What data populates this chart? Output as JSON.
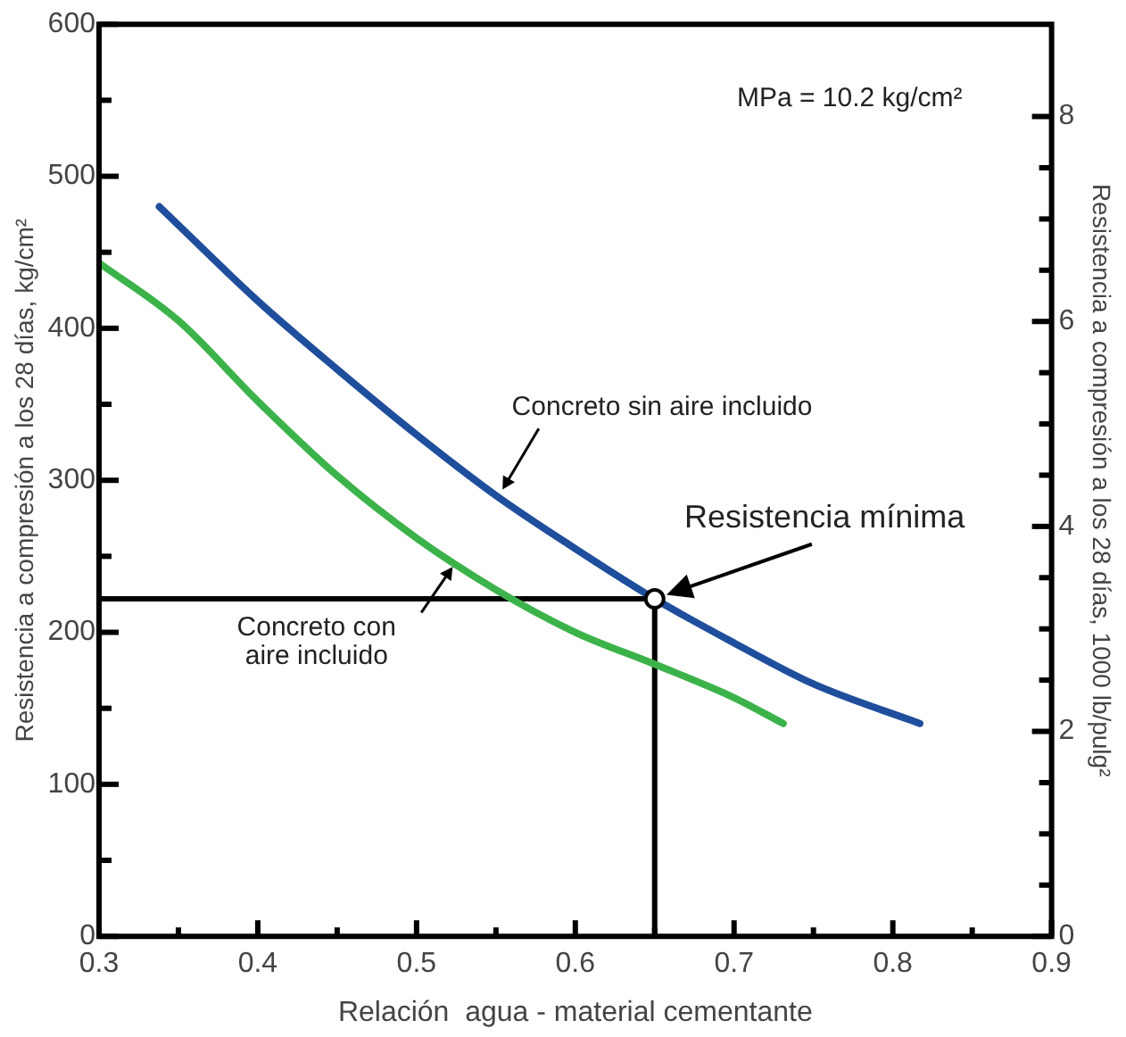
{
  "chart_data": {
    "type": "line",
    "xlabel": "Relación  agua - material cementante",
    "ylabel": "Resistencia a compresión a los 28 días, kg/cm²",
    "y2label": "Resistencia a compresión a los 28 días, 1000 lb/pulg²",
    "xlim": [
      0.3,
      0.9
    ],
    "xticks": [
      0.3,
      {
        "value": 0.35,
        "label": null
      },
      0.4,
      {
        "value": 0.45,
        "label": null
      },
      0.5,
      {
        "value": 0.55,
        "label": null
      },
      0.6,
      {
        "value": 0.65,
        "label": null
      },
      0.7,
      {
        "value": 0.75,
        "label": null
      },
      0.8,
      {
        "value": 0.85,
        "label": null
      },
      0.9
    ],
    "ylim": [
      0,
      600
    ],
    "yticks": [
      0,
      {
        "value": 50,
        "label": null
      },
      100,
      {
        "value": 150,
        "label": null
      },
      200,
      {
        "value": 250,
        "label": null
      },
      300,
      {
        "value": 350,
        "label": null
      },
      400,
      {
        "value": 450,
        "label": null
      },
      500,
      {
        "value": 550,
        "label": null
      },
      600
    ],
    "y2lim": [
      0,
      8.9
    ],
    "y2ticks": [
      0,
      {
        "value": 0.5,
        "label": null
      },
      {
        "value": 1,
        "label": null
      },
      {
        "value": 1.5,
        "label": null
      },
      2,
      {
        "value": 2.5,
        "label": null
      },
      {
        "value": 3,
        "label": null
      },
      {
        "value": 3.5,
        "label": null
      },
      4,
      {
        "value": 4.5,
        "label": null
      },
      {
        "value": 5,
        "label": null
      },
      {
        "value": 5.5,
        "label": null
      },
      6,
      {
        "value": 6.5,
        "label": null
      },
      {
        "value": 7,
        "label": null
      },
      {
        "value": 7.5,
        "label": null
      },
      8
    ],
    "legend": false,
    "grid": false,
    "series": [
      {
        "color": "#1f4e9c",
        "x": [
          0.338,
          0.4,
          0.45,
          0.5,
          0.55,
          0.6,
          0.65,
          0.7,
          0.75,
          0.817
        ],
        "values": [
          480,
          418,
          373,
          330,
          290,
          255,
          222,
          193,
          166,
          140
        ]
      },
      {
        "color": "#3cb34a",
        "x": [
          0.3,
          0.35,
          0.4,
          0.45,
          0.5,
          0.55,
          0.6,
          0.65,
          0.7,
          0.731
        ],
        "values": [
          443,
          405,
          352,
          303,
          262,
          228,
          200,
          179,
          157,
          140
        ]
      },
      {
        "color": "#000000",
        "x": [
          0.3,
          0.65,
          0.65
        ],
        "values": [
          222,
          222,
          0
        ],
        "marker": "none"
      },
      {
        "type": "scatter",
        "color": "#000000",
        "x": [
          0.65
        ],
        "values": [
          222
        ],
        "marker": "circle"
      }
    ],
    "annotations": [
      "MPa = 10.2 kg/cm²",
      {
        "text": "Concreto sin aire incluido",
        "x": 0.553,
        "y": 292
      },
      {
        "text": "Concreto con aire incluido",
        "x": 0.524,
        "y": 245
      },
      {
        "text": "Resistencia mínima",
        "x": 0.65,
        "y": 222
      }
    ]
  }
}
